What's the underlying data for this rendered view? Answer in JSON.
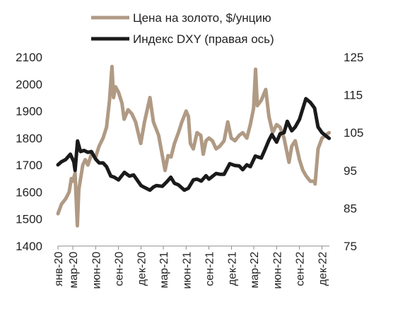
{
  "chart_data": {
    "type": "line",
    "title": "",
    "xlabel": "",
    "ylabel": "",
    "ylim": [
      1400,
      2100
    ],
    "y2lim": [
      75,
      125
    ],
    "yticks": [
      1400,
      1500,
      1600,
      1700,
      1800,
      1900,
      2000,
      2100
    ],
    "y2ticks": [
      75,
      85,
      95,
      105,
      115,
      125
    ],
    "xlim": [
      "2020-01-01",
      "2022-12-31"
    ],
    "xticks": [
      {
        "date": "2020-01-01",
        "label": "янв-20"
      },
      {
        "date": "2020-03-01",
        "label": "мар-20"
      },
      {
        "date": "2020-06-01",
        "label": "июн-20"
      },
      {
        "date": "2020-09-01",
        "label": "сен-20"
      },
      {
        "date": "2020-12-01",
        "label": "дек-20"
      },
      {
        "date": "2021-03-01",
        "label": "мар-21"
      },
      {
        "date": "2021-06-01",
        "label": "июн-21"
      },
      {
        "date": "2021-09-01",
        "label": "сен-21"
      },
      {
        "date": "2021-12-01",
        "label": "дек-21"
      },
      {
        "date": "2022-03-01",
        "label": "мар-22"
      },
      {
        "date": "2022-06-01",
        "label": "июн-22"
      },
      {
        "date": "2022-09-01",
        "label": "сен-22"
      },
      {
        "date": "2022-12-01",
        "label": "дек-22"
      }
    ],
    "grid": false,
    "legend_position": "top",
    "series": [
      {
        "name": "Цена на золото, $/унцию",
        "axis": "left",
        "color": "#b09a84",
        "x": [
          "2020-01-01",
          "2020-01-15",
          "2020-02-01",
          "2020-02-15",
          "2020-02-24",
          "2020-03-01",
          "2020-03-10",
          "2020-03-19",
          "2020-03-25",
          "2020-04-10",
          "2020-04-20",
          "2020-05-01",
          "2020-05-15",
          "2020-06-01",
          "2020-06-15",
          "2020-07-01",
          "2020-07-15",
          "2020-07-27",
          "2020-08-06",
          "2020-08-12",
          "2020-08-20",
          "2020-09-01",
          "2020-09-15",
          "2020-09-24",
          "2020-10-10",
          "2020-10-25",
          "2020-11-09",
          "2020-11-30",
          "2020-12-15",
          "2021-01-06",
          "2021-01-20",
          "2021-02-10",
          "2021-02-26",
          "2021-03-08",
          "2021-03-20",
          "2021-04-01",
          "2021-04-15",
          "2021-05-01",
          "2021-05-15",
          "2021-06-01",
          "2021-06-10",
          "2021-06-18",
          "2021-06-30",
          "2021-07-15",
          "2021-07-30",
          "2021-08-09",
          "2021-08-20",
          "2021-09-01",
          "2021-09-15",
          "2021-09-30",
          "2021-10-15",
          "2021-11-01",
          "2021-11-16",
          "2021-11-30",
          "2021-12-15",
          "2022-01-01",
          "2022-01-15",
          "2022-02-01",
          "2022-02-15",
          "2022-02-28",
          "2022-03-08",
          "2022-03-15",
          "2022-03-31",
          "2022-04-18",
          "2022-05-01",
          "2022-05-16",
          "2022-06-01",
          "2022-06-15",
          "2022-07-01",
          "2022-07-21",
          "2022-08-01",
          "2022-08-15",
          "2022-09-01",
          "2022-09-15",
          "2022-09-28",
          "2022-10-15",
          "2022-11-01",
          "2022-11-03",
          "2022-11-15",
          "2022-12-01",
          "2022-12-15",
          "2022-12-30"
        ],
        "values": [
          1520,
          1555,
          1575,
          1600,
          1650,
          1640,
          1670,
          1475,
          1610,
          1700,
          1720,
          1700,
          1740,
          1730,
          1770,
          1800,
          1840,
          1940,
          2065,
          1950,
          1990,
          1970,
          1930,
          1870,
          1905,
          1890,
          1860,
          1780,
          1860,
          1950,
          1860,
          1810,
          1730,
          1680,
          1735,
          1730,
          1780,
          1820,
          1860,
          1900,
          1880,
          1780,
          1760,
          1820,
          1810,
          1740,
          1790,
          1800,
          1790,
          1760,
          1770,
          1790,
          1860,
          1800,
          1790,
          1810,
          1820,
          1800,
          1850,
          1910,
          2055,
          1920,
          1940,
          1980,
          1880,
          1820,
          1850,
          1840,
          1800,
          1710,
          1770,
          1790,
          1720,
          1680,
          1660,
          1640,
          1640,
          1630,
          1760,
          1800,
          1810,
          1820
        ]
      },
      {
        "name": "Индекс DXY (правая ось)",
        "axis": "right",
        "color": "#1a1a1a",
        "x": [
          "2020-01-01",
          "2020-01-15",
          "2020-02-01",
          "2020-02-20",
          "2020-03-05",
          "2020-03-10",
          "2020-03-20",
          "2020-04-01",
          "2020-04-15",
          "2020-05-01",
          "2020-05-15",
          "2020-06-01",
          "2020-06-15",
          "2020-07-01",
          "2020-07-15",
          "2020-08-01",
          "2020-08-15",
          "2020-09-01",
          "2020-09-25",
          "2020-10-15",
          "2020-11-01",
          "2020-11-15",
          "2020-12-01",
          "2020-12-15",
          "2021-01-06",
          "2021-01-20",
          "2021-02-01",
          "2021-02-25",
          "2021-03-15",
          "2021-03-31",
          "2021-04-15",
          "2021-05-01",
          "2021-05-25",
          "2021-06-10",
          "2021-06-30",
          "2021-07-15",
          "2021-08-01",
          "2021-08-20",
          "2021-09-01",
          "2021-09-30",
          "2021-10-15",
          "2021-11-01",
          "2021-11-24",
          "2021-12-15",
          "2022-01-01",
          "2022-01-15",
          "2022-02-01",
          "2022-02-15",
          "2022-03-07",
          "2022-03-31",
          "2022-04-15",
          "2022-05-01",
          "2022-05-13",
          "2022-06-01",
          "2022-06-15",
          "2022-07-01",
          "2022-07-14",
          "2022-08-01",
          "2022-08-15",
          "2022-09-01",
          "2022-09-27",
          "2022-10-15",
          "2022-11-01",
          "2022-11-15",
          "2022-12-01",
          "2022-12-20",
          "2022-12-30"
        ],
        "values": [
          96.5,
          97.3,
          97.9,
          99.3,
          97.3,
          95.0,
          102.8,
          100.0,
          100.3,
          99.8,
          100.0,
          98.0,
          97.0,
          97.0,
          96.0,
          93.5,
          93.2,
          92.5,
          94.5,
          93.5,
          93.8,
          92.5,
          91.0,
          90.5,
          89.8,
          90.6,
          91.0,
          90.8,
          92.0,
          93.2,
          91.6,
          91.2,
          89.8,
          90.3,
          92.5,
          92.7,
          92.2,
          93.6,
          92.7,
          94.2,
          94.0,
          94.0,
          96.8,
          96.3,
          96.2,
          95.2,
          96.5,
          96.0,
          98.8,
          98.3,
          100.5,
          103.0,
          104.5,
          102.5,
          104.7,
          105.0,
          108.0,
          105.5,
          106.5,
          108.5,
          114.0,
          113.0,
          111.5,
          106.5,
          105.0,
          104.0,
          103.5
        ]
      }
    ]
  }
}
